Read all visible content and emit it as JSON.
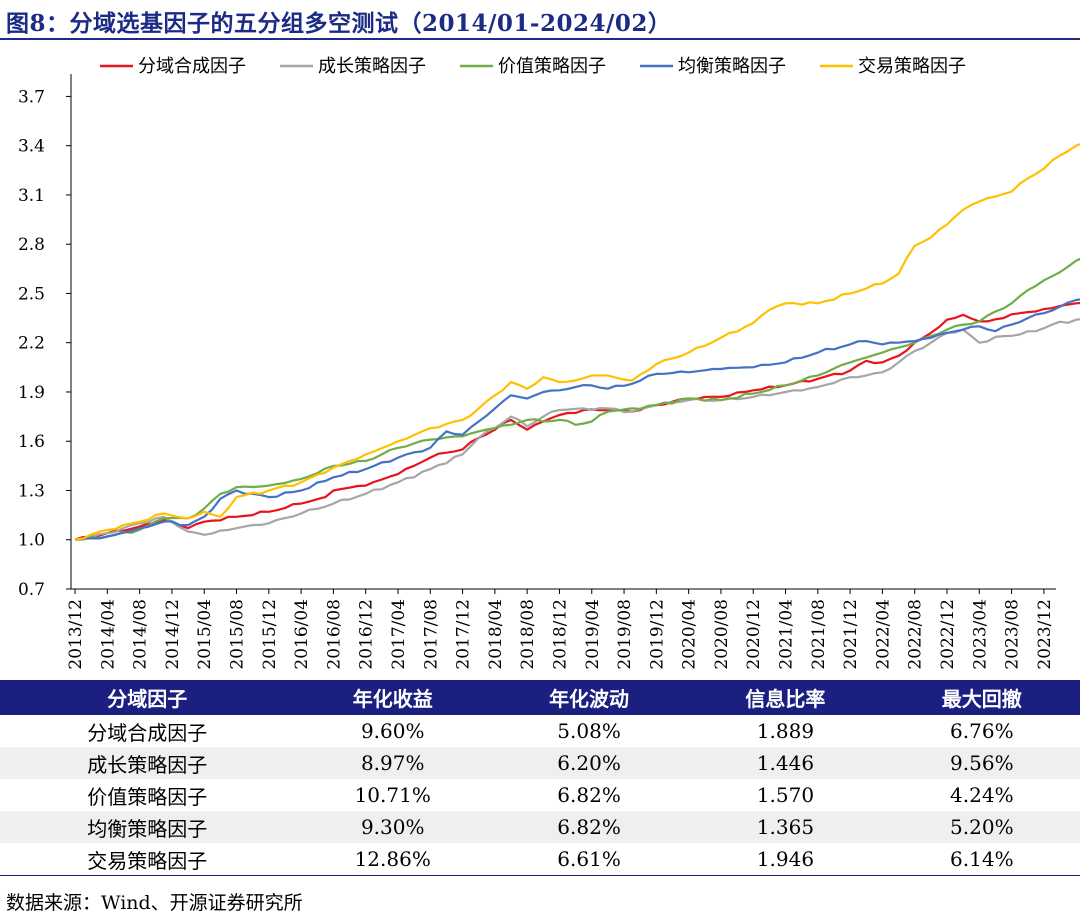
{
  "figure_title": "图8：分域选基因子的五分组多空测试（2014/01-2024/02）",
  "source": "数据来源：Wind、开源证券研究所",
  "chart_data": {
    "type": "line",
    "title": "",
    "xlabel": "",
    "ylabel": "",
    "ylim": [
      0.7,
      3.8
    ],
    "y_ticks": [
      "0.7",
      "1.0",
      "1.3",
      "1.6",
      "1.9",
      "2.2",
      "2.5",
      "2.8",
      "3.1",
      "3.4",
      "3.7"
    ],
    "x_tick_labels": [
      "2013/12",
      "2014/04",
      "2014/08",
      "2014/12",
      "2015/04",
      "2015/08",
      "2015/12",
      "2016/04",
      "2016/08",
      "2016/12",
      "2017/04",
      "2017/08",
      "2017/12",
      "2018/04",
      "2018/08",
      "2018/12",
      "2019/04",
      "2019/08",
      "2019/12",
      "2020/04",
      "2020/08",
      "2020/12",
      "2021/04",
      "2021/08",
      "2021/12",
      "2022/04",
      "2022/08",
      "2022/12",
      "2023/04",
      "2023/08",
      "2023/12"
    ],
    "x_start": "2013/12",
    "x_end": "2024/02",
    "grid": false,
    "legend_position": "top",
    "series": [
      {
        "name": "分域合成因子",
        "color": "#e8141b",
        "anchors": [
          [
            0,
            1.0
          ],
          [
            4,
            1.04
          ],
          [
            8,
            1.08
          ],
          [
            11,
            1.12
          ],
          [
            14,
            1.07
          ],
          [
            16,
            1.11
          ],
          [
            20,
            1.14
          ],
          [
            24,
            1.17
          ],
          [
            28,
            1.22
          ],
          [
            31,
            1.26
          ],
          [
            32,
            1.3
          ],
          [
            36,
            1.33
          ],
          [
            40,
            1.4
          ],
          [
            44,
            1.5
          ],
          [
            46,
            1.53
          ],
          [
            48,
            1.55
          ],
          [
            50,
            1.62
          ],
          [
            52,
            1.67
          ],
          [
            54,
            1.73
          ],
          [
            56,
            1.67
          ],
          [
            58,
            1.72
          ],
          [
            60,
            1.76
          ],
          [
            63,
            1.79
          ],
          [
            66,
            1.79
          ],
          [
            69,
            1.78
          ],
          [
            72,
            1.82
          ],
          [
            76,
            1.86
          ],
          [
            80,
            1.87
          ],
          [
            84,
            1.91
          ],
          [
            88,
            1.94
          ],
          [
            92,
            1.98
          ],
          [
            96,
            2.03
          ],
          [
            98,
            2.09
          ],
          [
            100,
            2.08
          ],
          [
            102,
            2.12
          ],
          [
            104,
            2.2
          ],
          [
            106,
            2.26
          ],
          [
            108,
            2.34
          ],
          [
            110,
            2.37
          ],
          [
            112,
            2.33
          ],
          [
            115,
            2.35
          ],
          [
            117,
            2.38
          ],
          [
            119,
            2.39
          ],
          [
            121,
            2.41
          ],
          [
            124,
            2.44
          ],
          [
            127,
            2.48
          ],
          [
            130,
            2.52
          ],
          [
            133,
            2.49
          ],
          [
            136,
            2.55
          ],
          [
            139,
            2.59
          ],
          [
            141,
            2.62
          ],
          [
            142,
            2.56
          ]
        ]
      },
      {
        "name": "成长策略因子",
        "color": "#a6a6a6",
        "anchors": [
          [
            0,
            1.0
          ],
          [
            4,
            1.04
          ],
          [
            8,
            1.1
          ],
          [
            11,
            1.14
          ],
          [
            14,
            1.05
          ],
          [
            16,
            1.03
          ],
          [
            20,
            1.07
          ],
          [
            24,
            1.1
          ],
          [
            28,
            1.16
          ],
          [
            32,
            1.22
          ],
          [
            36,
            1.28
          ],
          [
            40,
            1.35
          ],
          [
            44,
            1.43
          ],
          [
            48,
            1.52
          ],
          [
            50,
            1.62
          ],
          [
            52,
            1.68
          ],
          [
            54,
            1.75
          ],
          [
            56,
            1.69
          ],
          [
            58,
            1.75
          ],
          [
            60,
            1.79
          ],
          [
            63,
            1.8
          ],
          [
            66,
            1.8
          ],
          [
            69,
            1.78
          ],
          [
            72,
            1.82
          ],
          [
            76,
            1.85
          ],
          [
            80,
            1.85
          ],
          [
            84,
            1.87
          ],
          [
            88,
            1.9
          ],
          [
            92,
            1.93
          ],
          [
            96,
            1.99
          ],
          [
            98,
            2.0
          ],
          [
            100,
            2.02
          ],
          [
            102,
            2.08
          ],
          [
            104,
            2.15
          ],
          [
            106,
            2.2
          ],
          [
            108,
            2.26
          ],
          [
            110,
            2.28
          ],
          [
            112,
            2.2
          ],
          [
            115,
            2.24
          ],
          [
            117,
            2.25
          ],
          [
            119,
            2.27
          ],
          [
            121,
            2.31
          ],
          [
            124,
            2.34
          ],
          [
            127,
            2.35
          ],
          [
            130,
            2.33
          ],
          [
            133,
            2.31
          ],
          [
            136,
            2.35
          ],
          [
            139,
            2.41
          ],
          [
            141,
            2.45
          ],
          [
            142,
            2.42
          ]
        ]
      },
      {
        "name": "价值策略因子",
        "color": "#70ad47",
        "anchors": [
          [
            0,
            1.0
          ],
          [
            4,
            1.02
          ],
          [
            8,
            1.06
          ],
          [
            11,
            1.13
          ],
          [
            14,
            1.13
          ],
          [
            16,
            1.19
          ],
          [
            18,
            1.28
          ],
          [
            20,
            1.32
          ],
          [
            24,
            1.33
          ],
          [
            28,
            1.37
          ],
          [
            32,
            1.45
          ],
          [
            36,
            1.48
          ],
          [
            40,
            1.56
          ],
          [
            44,
            1.61
          ],
          [
            48,
            1.63
          ],
          [
            50,
            1.66
          ],
          [
            52,
            1.68
          ],
          [
            54,
            1.7
          ],
          [
            56,
            1.73
          ],
          [
            58,
            1.72
          ],
          [
            60,
            1.73
          ],
          [
            62,
            1.7
          ],
          [
            64,
            1.72
          ],
          [
            66,
            1.78
          ],
          [
            69,
            1.8
          ],
          [
            72,
            1.82
          ],
          [
            76,
            1.86
          ],
          [
            80,
            1.85
          ],
          [
            84,
            1.89
          ],
          [
            88,
            1.94
          ],
          [
            92,
            2.0
          ],
          [
            96,
            2.08
          ],
          [
            98,
            2.11
          ],
          [
            100,
            2.14
          ],
          [
            102,
            2.17
          ],
          [
            104,
            2.2
          ],
          [
            106,
            2.24
          ],
          [
            108,
            2.28
          ],
          [
            110,
            2.31
          ],
          [
            112,
            2.33
          ],
          [
            114,
            2.39
          ],
          [
            116,
            2.44
          ],
          [
            118,
            2.52
          ],
          [
            120,
            2.58
          ],
          [
            122,
            2.63
          ],
          [
            124,
            2.7
          ],
          [
            126,
            2.75
          ],
          [
            128,
            2.79
          ],
          [
            130,
            2.77
          ],
          [
            132,
            2.74
          ],
          [
            134,
            2.77
          ],
          [
            136,
            2.8
          ],
          [
            138,
            2.83
          ],
          [
            140,
            2.86
          ],
          [
            142,
            2.84
          ]
        ]
      },
      {
        "name": "均衡策略因子",
        "color": "#4472c4",
        "anchors": [
          [
            0,
            1.0
          ],
          [
            4,
            1.02
          ],
          [
            8,
            1.07
          ],
          [
            11,
            1.11
          ],
          [
            14,
            1.09
          ],
          [
            16,
            1.14
          ],
          [
            18,
            1.25
          ],
          [
            20,
            1.3
          ],
          [
            22,
            1.28
          ],
          [
            24,
            1.26
          ],
          [
            28,
            1.3
          ],
          [
            32,
            1.38
          ],
          [
            36,
            1.43
          ],
          [
            40,
            1.5
          ],
          [
            44,
            1.56
          ],
          [
            46,
            1.66
          ],
          [
            48,
            1.64
          ],
          [
            50,
            1.72
          ],
          [
            52,
            1.8
          ],
          [
            54,
            1.88
          ],
          [
            56,
            1.86
          ],
          [
            58,
            1.9
          ],
          [
            60,
            1.91
          ],
          [
            62,
            1.93
          ],
          [
            64,
            1.94
          ],
          [
            66,
            1.92
          ],
          [
            69,
            1.95
          ],
          [
            72,
            2.01
          ],
          [
            76,
            2.02
          ],
          [
            80,
            2.04
          ],
          [
            84,
            2.05
          ],
          [
            88,
            2.08
          ],
          [
            92,
            2.14
          ],
          [
            96,
            2.19
          ],
          [
            98,
            2.21
          ],
          [
            100,
            2.19
          ],
          [
            102,
            2.2
          ],
          [
            104,
            2.21
          ],
          [
            106,
            2.23
          ],
          [
            108,
            2.26
          ],
          [
            110,
            2.28
          ],
          [
            112,
            2.3
          ],
          [
            114,
            2.27
          ],
          [
            116,
            2.31
          ],
          [
            118,
            2.35
          ],
          [
            120,
            2.38
          ],
          [
            122,
            2.42
          ],
          [
            124,
            2.46
          ],
          [
            126,
            2.48
          ],
          [
            128,
            2.47
          ],
          [
            130,
            2.46
          ],
          [
            132,
            2.48
          ],
          [
            134,
            2.5
          ],
          [
            136,
            2.51
          ],
          [
            138,
            2.52
          ],
          [
            140,
            2.53
          ],
          [
            142,
            2.48
          ]
        ]
      },
      {
        "name": "交易策略因子",
        "color": "#ffc000",
        "anchors": [
          [
            0,
            1.0
          ],
          [
            4,
            1.06
          ],
          [
            8,
            1.11
          ],
          [
            11,
            1.16
          ],
          [
            14,
            1.13
          ],
          [
            16,
            1.17
          ],
          [
            18,
            1.14
          ],
          [
            20,
            1.26
          ],
          [
            24,
            1.3
          ],
          [
            28,
            1.35
          ],
          [
            32,
            1.44
          ],
          [
            36,
            1.52
          ],
          [
            40,
            1.6
          ],
          [
            44,
            1.68
          ],
          [
            48,
            1.73
          ],
          [
            50,
            1.8
          ],
          [
            52,
            1.88
          ],
          [
            54,
            1.96
          ],
          [
            56,
            1.92
          ],
          [
            58,
            1.99
          ],
          [
            60,
            1.96
          ],
          [
            62,
            1.97
          ],
          [
            64,
            2.0
          ],
          [
            66,
            2.0
          ],
          [
            69,
            1.97
          ],
          [
            72,
            2.07
          ],
          [
            76,
            2.14
          ],
          [
            80,
            2.23
          ],
          [
            84,
            2.32
          ],
          [
            86,
            2.4
          ],
          [
            88,
            2.44
          ],
          [
            92,
            2.44
          ],
          [
            96,
            2.5
          ],
          [
            98,
            2.53
          ],
          [
            100,
            2.56
          ],
          [
            102,
            2.62
          ],
          [
            104,
            2.79
          ],
          [
            106,
            2.84
          ],
          [
            108,
            2.92
          ],
          [
            110,
            3.01
          ],
          [
            112,
            3.06
          ],
          [
            114,
            3.09
          ],
          [
            116,
            3.12
          ],
          [
            118,
            3.2
          ],
          [
            120,
            3.26
          ],
          [
            122,
            3.34
          ],
          [
            124,
            3.4
          ],
          [
            126,
            3.42
          ],
          [
            128,
            3.5
          ],
          [
            130,
            3.57
          ],
          [
            132,
            3.62
          ],
          [
            134,
            3.66
          ],
          [
            136,
            3.66
          ],
          [
            138,
            3.68
          ],
          [
            140,
            3.67
          ],
          [
            141,
            3.64
          ],
          [
            142,
            3.46
          ]
        ]
      }
    ]
  },
  "table": {
    "headers": [
      "分域因子",
      "年化收益",
      "年化波动",
      "信息比率",
      "最大回撤"
    ],
    "rows": [
      [
        "分域合成因子",
        "9.60%",
        "5.08%",
        "1.889",
        "6.76%"
      ],
      [
        "成长策略因子",
        "8.97%",
        "6.20%",
        "1.446",
        "9.56%"
      ],
      [
        "价值策略因子",
        "10.71%",
        "6.82%",
        "1.570",
        "4.24%"
      ],
      [
        "均衡策略因子",
        "9.30%",
        "6.82%",
        "1.365",
        "5.20%"
      ],
      [
        "交易策略因子",
        "12.86%",
        "6.61%",
        "1.946",
        "6.14%"
      ]
    ]
  }
}
